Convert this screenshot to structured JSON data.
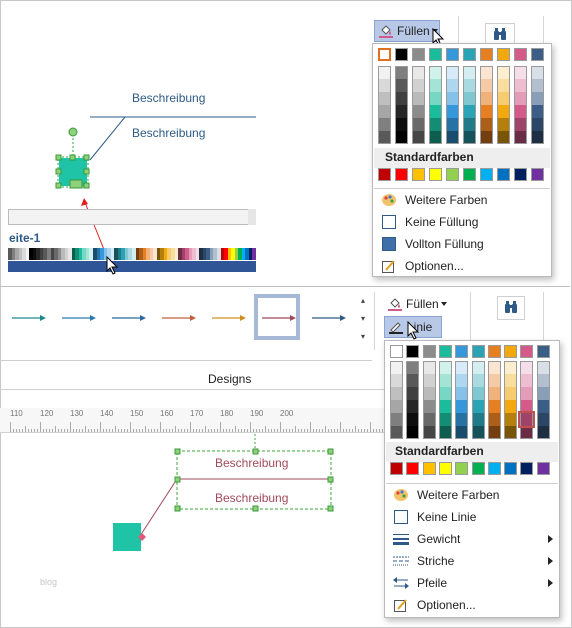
{
  "top_ribbon": {
    "fill_button": "Füllen"
  },
  "top_menu": {
    "section_title": "Standardfarben",
    "items": [
      {
        "label": "Weitere Farben",
        "icon": "palette-icon"
      },
      {
        "label": "Keine Füllung",
        "icon": "empty-box-icon"
      },
      {
        "label": "Vollton Füllung",
        "icon": "solid-box-icon"
      },
      {
        "label": "Optionen...",
        "icon": "options-icon"
      }
    ]
  },
  "canvas_top": {
    "label1": "Beschreibung",
    "label2": "Beschreibung",
    "page_tab": "eite-1"
  },
  "mid_ribbon": {
    "fill_button": "Füllen",
    "line_button": "Linie",
    "designs_label": "Designs"
  },
  "bottom_menu": {
    "section_title": "Standardfarben",
    "items": [
      {
        "label": "Weitere Farben",
        "icon": "palette-icon"
      },
      {
        "label": "Keine Linie",
        "icon": "empty-box-icon"
      },
      {
        "label": "Gewicht",
        "icon": "line-weight-icon",
        "submenu": true
      },
      {
        "label": "Striche",
        "icon": "dashes-icon",
        "submenu": true
      },
      {
        "label": "Pfeile",
        "icon": "arrows-icon",
        "submenu": true
      },
      {
        "label": "Optionen...",
        "icon": "options-icon"
      }
    ]
  },
  "ruler": {
    "ticks": [
      "110",
      "120",
      "130",
      "140",
      "150",
      "160",
      "170",
      "180",
      "190",
      "200"
    ]
  },
  "canvas_bottom": {
    "label1": "Beschreibung",
    "label2": "Beschreibung",
    "watermark": "blog"
  },
  "colors": {
    "theme_top": [
      "#ffffff",
      "#000000",
      "#8c8c8c",
      "#1abc9c",
      "#3498db",
      "#2aa3b4",
      "#e67e22",
      "#f1a90f",
      "#d45a8a",
      "#3b5e87"
    ],
    "standard": [
      "#c00000",
      "#ff0000",
      "#ffc000",
      "#ffff00",
      "#92d050",
      "#00b050",
      "#00b0f0",
      "#0070c0",
      "#002060",
      "#7030a0"
    ],
    "accent": "#b7c9e6",
    "selection": "#2e5a87"
  }
}
